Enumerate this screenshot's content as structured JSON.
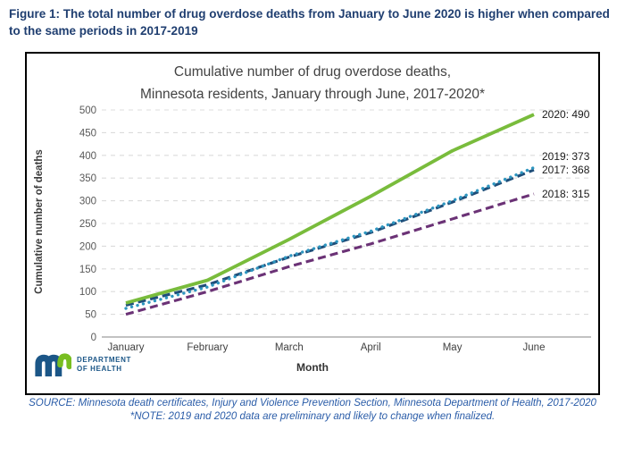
{
  "figure_title": "Figure 1: The total number of drug overdose deaths from January to June 2020 is higher when compared to the same periods in 2017-2019",
  "chart_data": {
    "type": "line",
    "title_line1": "Cumulative number of drug overdose deaths,",
    "title_line2": "Minnesota residents, January through June, 2017-2020*",
    "xlabel": "Month",
    "ylabel": "Cumulative number of deaths",
    "categories": [
      "January",
      "February",
      "March",
      "April",
      "May",
      "June"
    ],
    "y_ticks": [
      0,
      50,
      100,
      150,
      200,
      250,
      300,
      350,
      400,
      450,
      500
    ],
    "ylim": [
      0,
      500
    ],
    "grid": "horizontal-dashed",
    "legend_position": "end-of-line-labels",
    "series": [
      {
        "name": "2020",
        "values": [
          75,
          125,
          215,
          310,
          410,
          490
        ],
        "color": "#79BC3C",
        "style": "solid",
        "end_label": "2020: 490"
      },
      {
        "name": "2019",
        "values": [
          63,
          110,
          178,
          233,
          300,
          373
        ],
        "color": "#2E96C0",
        "style": "dotted",
        "end_label": "2019: 373"
      },
      {
        "name": "2017",
        "values": [
          70,
          115,
          176,
          230,
          297,
          368
        ],
        "color": "#1F4E79",
        "style": "dashed",
        "end_label": "2017: 368"
      },
      {
        "name": "2018",
        "values": [
          50,
          100,
          155,
          205,
          260,
          315
        ],
        "color": "#6B3276",
        "style": "dashed",
        "end_label": "2018: 315"
      }
    ]
  },
  "logo": {
    "org_line1": "DEPARTMENT",
    "org_line2": "OF HEALTH",
    "mark": "mn-logo",
    "blue": "#1B5687",
    "green": "#78BE21"
  },
  "footer": {
    "source": "SOURCE: Minnesota death certificates, Injury and Violence Prevention Section, Minnesota Department of Health, 2017-2020",
    "note": "*NOTE: 2019 and 2020 data are preliminary and likely to change when finalized."
  }
}
